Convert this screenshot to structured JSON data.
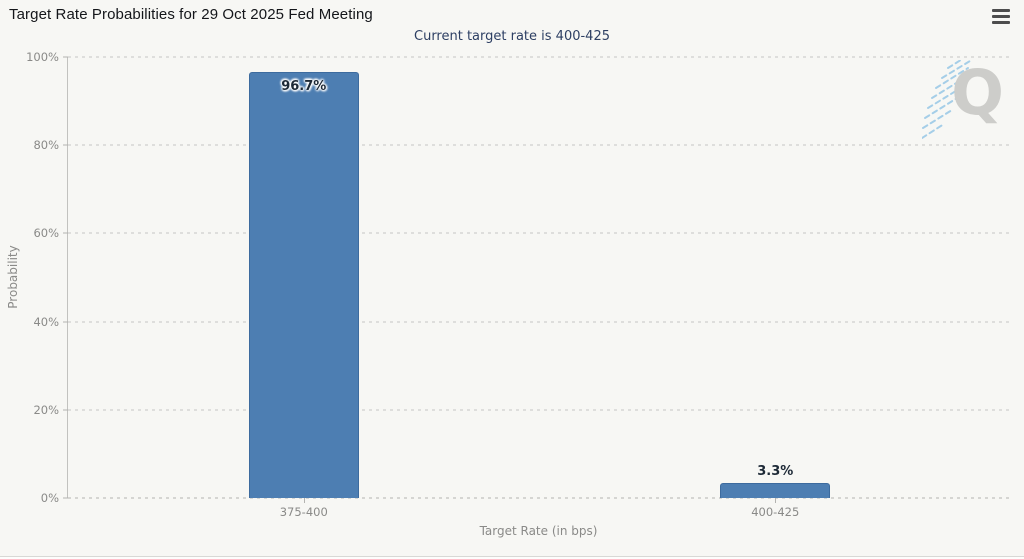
{
  "header": {
    "menu_icon": "hamburger-menu-icon"
  },
  "watermark": {
    "letter": "Q"
  },
  "colors": {
    "bar": "#4d7eb2",
    "bar_border": "#3d6b9e",
    "subtitle": "#2d3f63",
    "axis_text": "#8a8a88",
    "background": "#f7f7f4",
    "watermark_gray": "#c9c9c6",
    "watermark_blue": "#8cc2e4"
  },
  "chart_data": {
    "type": "bar",
    "title": "Target Rate Probabilities for 29 Oct 2025 Fed Meeting",
    "subtitle": "Current target rate is 400-425",
    "categories": [
      "375-400",
      "400-425"
    ],
    "values": [
      96.7,
      3.3
    ],
    "bar_labels": [
      "96.7%",
      "3.3%"
    ],
    "xlabel": "Target Rate (in bps)",
    "ylabel": "Probability",
    "ylim": [
      0,
      100
    ],
    "yticks": [
      0,
      20,
      40,
      60,
      80,
      100
    ],
    "ytick_labels": [
      "0%",
      "20%",
      "40%",
      "60%",
      "80%",
      "100%"
    ],
    "bar_color": "#4d7eb2",
    "grid": "horizontal-dotted",
    "legend": "none"
  }
}
